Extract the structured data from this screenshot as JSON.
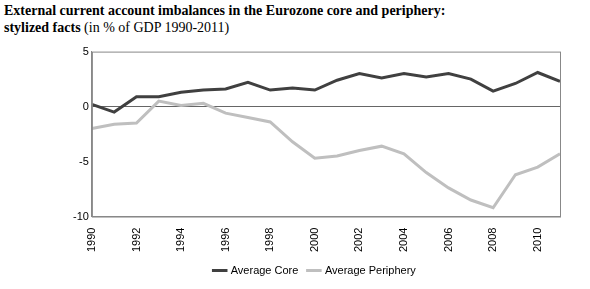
{
  "chart_data": {
    "type": "line",
    "title": "External current account imbalances in the Eurozone core and periphery: stylized facts",
    "subtitle": "(in % of GDP 1990-2011)",
    "x": [
      1990,
      1991,
      1992,
      1993,
      1994,
      1995,
      1996,
      1997,
      1998,
      1999,
      2000,
      2001,
      2002,
      2003,
      2004,
      2005,
      2006,
      2007,
      2008,
      2009,
      2010,
      2011
    ],
    "series": [
      {
        "name": "Average Core",
        "color": "#404040",
        "values": [
          0.2,
          -0.5,
          0.9,
          0.9,
          1.3,
          1.5,
          1.6,
          2.2,
          1.5,
          1.7,
          1.5,
          2.4,
          3.0,
          2.6,
          3.0,
          2.7,
          3.0,
          2.5,
          1.4,
          2.1,
          3.1,
          2.3
        ]
      },
      {
        "name": "Average Periphery",
        "color": "#bfbfbf",
        "values": [
          -2.0,
          -1.6,
          -1.5,
          0.5,
          0.1,
          0.3,
          -0.6,
          -1.0,
          -1.4,
          -3.2,
          -4.7,
          -4.5,
          -4.0,
          -3.6,
          -4.3,
          -6.0,
          -7.4,
          -8.5,
          -9.2,
          -6.2,
          -5.5,
          -4.3
        ]
      }
    ],
    "xlim": [
      1990,
      2011
    ],
    "xticks": [
      1990,
      1992,
      1994,
      1996,
      1998,
      2000,
      2002,
      2004,
      2006,
      2008,
      2010
    ],
    "ylim": [
      -10,
      5
    ],
    "yticks": [
      -10,
      -5,
      0,
      5
    ],
    "grid": false,
    "legend": "bottom"
  }
}
